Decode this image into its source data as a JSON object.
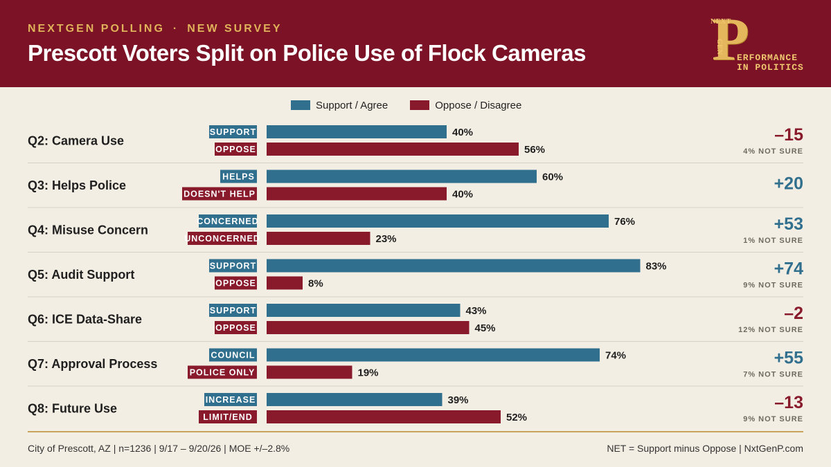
{
  "header": {
    "kicker_left": "NEXTGEN POLLING",
    "kicker_sep": "·",
    "kicker_right": "NEW SURVEY",
    "title": "Prescott Voters Split on Police Use of Flock Cameras",
    "logo": {
      "next": "NEXT",
      "gen": "GEN",
      "letter": "P",
      "line1": "ERFORMANCE",
      "line2": "IN POLITICS"
    }
  },
  "legend": {
    "support": "Support / Agree",
    "oppose": "Oppose / Disagree"
  },
  "colors": {
    "support": "#306f8e",
    "oppose": "#881a2c",
    "header_bg": "#7b1225",
    "accent_gold": "#e0b25a",
    "background": "#f3eee3"
  },
  "chart_data": {
    "type": "bar",
    "orientation": "horizontal",
    "xlim": [
      0,
      100
    ],
    "unit": "%",
    "series": [
      {
        "name": "Support / Agree",
        "values": [
          40,
          60,
          76,
          83,
          43,
          74,
          39
        ]
      },
      {
        "name": "Oppose / Disagree",
        "values": [
          56,
          40,
          23,
          8,
          45,
          19,
          52
        ]
      }
    ],
    "categories": [
      "Q2: Camera Use",
      "Q3: Helps Police",
      "Q4: Misuse Concern",
      "Q5: Audit Support",
      "Q6: ICE Data-Share",
      "Q7: Approval Process",
      "Q8: Future Use"
    ],
    "questions": [
      {
        "label": "Q2: Camera Use",
        "support_label": "SUPPORT",
        "oppose_label": "OPPOSE",
        "support": 40,
        "oppose": 56,
        "support_text": "40%",
        "oppose_text": "56%",
        "net": "–15",
        "net_sign": "neg",
        "not_sure": "4% NOT SURE"
      },
      {
        "label": "Q3: Helps Police",
        "support_label": "HELPS",
        "oppose_label": "DOESN'T HELP",
        "support": 60,
        "oppose": 40,
        "support_text": "60%",
        "oppose_text": "40%",
        "net": "+20",
        "net_sign": "pos",
        "not_sure": ""
      },
      {
        "label": "Q4: Misuse Concern",
        "support_label": "CONCERNED",
        "oppose_label": "UNCONCERNED",
        "support": 76,
        "oppose": 23,
        "support_text": "76%",
        "oppose_text": "23%",
        "net": "+53",
        "net_sign": "pos",
        "not_sure": "1% NOT SURE"
      },
      {
        "label": "Q5: Audit Support",
        "support_label": "SUPPORT",
        "oppose_label": "OPPOSE",
        "support": 83,
        "oppose": 8,
        "support_text": "83%",
        "oppose_text": "8%",
        "net": "+74",
        "net_sign": "pos",
        "not_sure": "9% NOT SURE"
      },
      {
        "label": "Q6: ICE Data-Share",
        "support_label": "SUPPORT",
        "oppose_label": "OPPOSE",
        "support": 43,
        "oppose": 45,
        "support_text": "43%",
        "oppose_text": "45%",
        "net": "–2",
        "net_sign": "neg",
        "not_sure": "12% NOT SURE"
      },
      {
        "label": "Q7: Approval Process",
        "support_label": "COUNCIL",
        "oppose_label": "POLICE ONLY",
        "support": 74,
        "oppose": 19,
        "support_text": "74%",
        "oppose_text": "19%",
        "net": "+55",
        "net_sign": "pos",
        "not_sure": "7% NOT SURE"
      },
      {
        "label": "Q8: Future Use",
        "support_label": "INCREASE",
        "oppose_label": "LIMIT/END",
        "support": 39,
        "oppose": 52,
        "support_text": "39%",
        "oppose_text": "52%",
        "net": "–13",
        "net_sign": "neg",
        "not_sure": "9% NOT SURE"
      }
    ]
  },
  "footer": {
    "left": "City of Prescott, AZ  |  n=1236  |  9/17 – 9/20/26  |  MOE +/–2.8%",
    "right": "NET = Support minus Oppose  |  NxtGenP.com"
  }
}
